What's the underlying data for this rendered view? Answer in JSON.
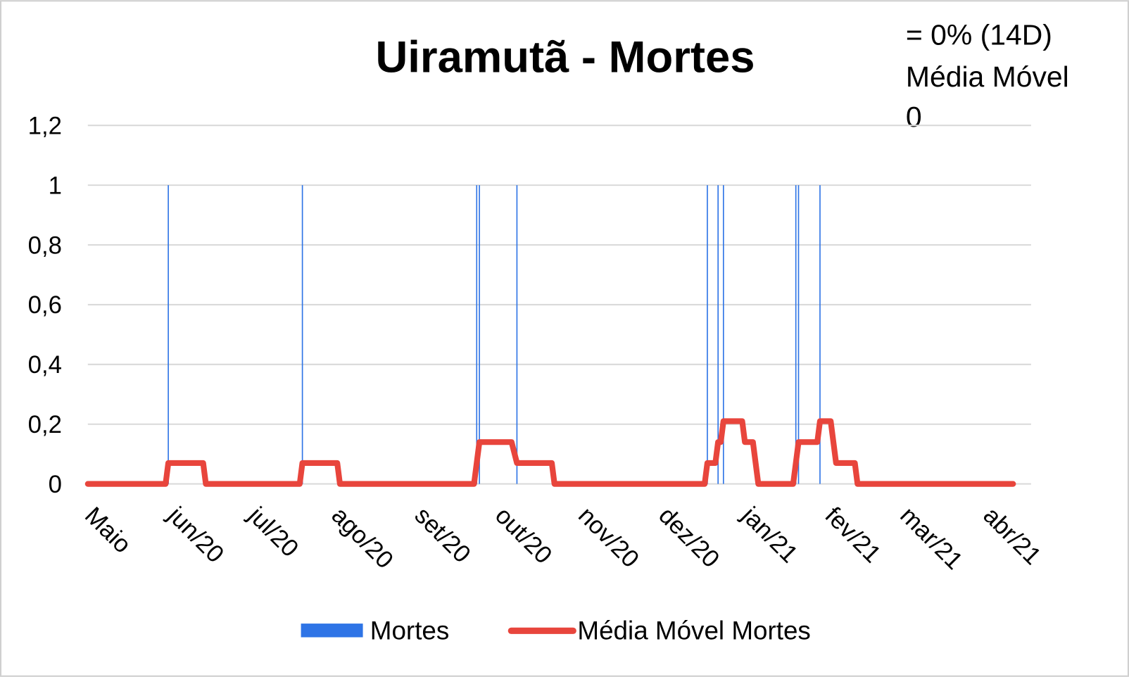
{
  "chart_data": {
    "type": "line",
    "title": "Uiramutã - Mortes",
    "annotation": [
      "= 0% (14D)",
      "Média Móvel",
      "0"
    ],
    "xlim": [
      0,
      345
    ],
    "xticks": [
      {
        "value": 0,
        "label": "Maio"
      },
      {
        "value": 31,
        "label": "jun/20"
      },
      {
        "value": 61,
        "label": "jul/20"
      },
      {
        "value": 92,
        "label": "ago/20"
      },
      {
        "value": 123,
        "label": "set/20"
      },
      {
        "value": 153,
        "label": "out/20"
      },
      {
        "value": 184,
        "label": "nov/20"
      },
      {
        "value": 214,
        "label": "dez/20"
      },
      {
        "value": 245,
        "label": "jan/21"
      },
      {
        "value": 276,
        "label": "fev/21"
      },
      {
        "value": 304,
        "label": "mar/21"
      },
      {
        "value": 335,
        "label": "abr/21"
      }
    ],
    "ylim": [
      0,
      1.2
    ],
    "yticks": [
      0,
      {
        "value": 0.2,
        "label": "0,2"
      },
      {
        "value": 0.4,
        "label": "0,4"
      },
      {
        "value": 0.6,
        "label": "0,6"
      },
      {
        "value": 0.8,
        "label": "0,8"
      },
      1,
      {
        "value": 1.2,
        "label": "1,2"
      }
    ],
    "grid": true,
    "legend": "bottom",
    "series": [
      {
        "name": "Mortes",
        "type": "bar",
        "color": "#2e74e6",
        "x": [
          30,
          80,
          145,
          146,
          160,
          231,
          235,
          237,
          264,
          265,
          273
        ],
        "values": [
          1,
          1,
          1,
          1,
          1,
          1,
          1,
          1,
          1,
          1,
          1
        ]
      },
      {
        "name": "Média Móvel Mortes",
        "type": "line",
        "color": "#e8453c",
        "x": [
          0,
          29,
          30,
          43,
          44,
          79,
          80,
          93,
          94,
          144,
          146,
          158,
          160,
          173,
          174,
          230,
          231,
          234,
          235,
          236,
          237,
          244,
          245,
          248,
          249,
          250,
          263,
          265,
          272,
          273,
          277,
          279,
          286,
          287,
          345
        ],
        "values": [
          0,
          0,
          0.07,
          0.07,
          0,
          0,
          0.07,
          0.07,
          0,
          0,
          0.14,
          0.14,
          0.07,
          0.07,
          0,
          0,
          0.07,
          0.07,
          0.14,
          0.14,
          0.21,
          0.21,
          0.14,
          0.14,
          0.07,
          0,
          0,
          0.14,
          0.14,
          0.21,
          0.21,
          0.07,
          0.07,
          0,
          0
        ]
      }
    ]
  }
}
